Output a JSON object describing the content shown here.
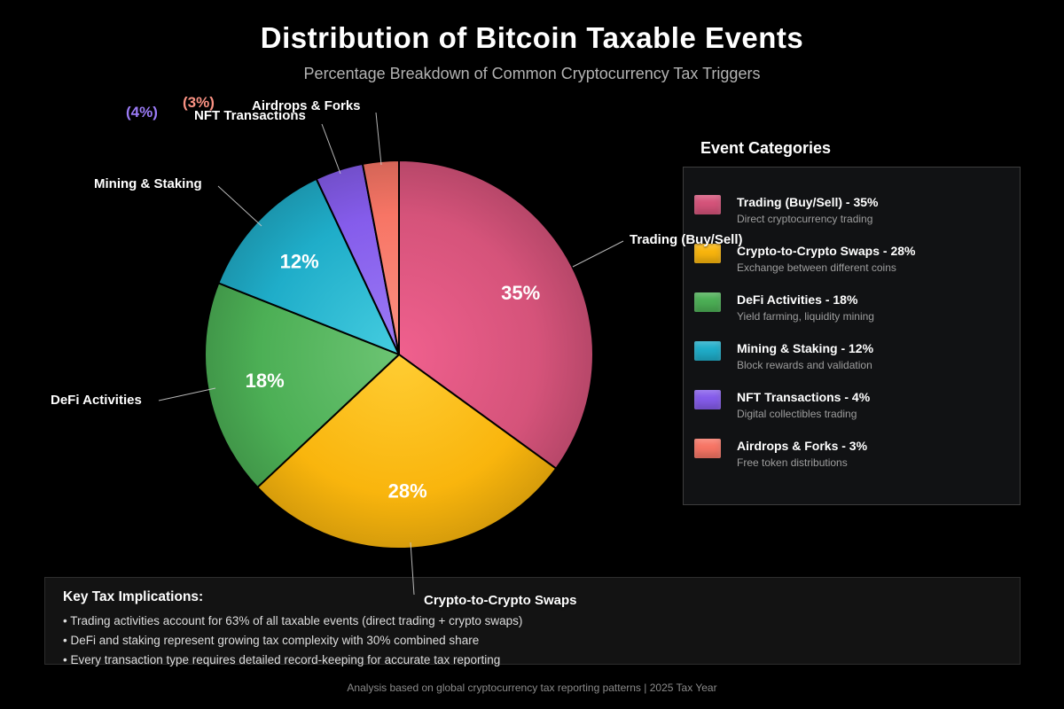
{
  "page": {
    "title": "Distribution of Bitcoin Taxable Events",
    "subtitle": "Percentage Breakdown of Common Cryptocurrency Tax Triggers",
    "footer": "Analysis based on global cryptocurrency tax reporting patterns | 2025 Tax Year"
  },
  "chart_data": {
    "type": "pie",
    "title": "Distribution of Bitcoin Taxable Events",
    "subtitle": "Percentage Breakdown of Common Cryptocurrency Tax Triggers",
    "start_angle": "12-o'clock",
    "direction": "clockwise",
    "legend_title": "Event Categories",
    "legend_position": "right",
    "slices": [
      {
        "label": "Trading (Buy/Sell)",
        "value": 35,
        "display_pct": "35%",
        "pct_placement": "inside",
        "color": "#d5537a",
        "color_light": "#f0608e",
        "description": "Direct cryptocurrency trading"
      },
      {
        "label": "Crypto-to-Crypto Swaps",
        "value": 28,
        "display_pct": "28%",
        "pct_placement": "inside",
        "color": "#f9b50d",
        "color_light": "#ffcd33",
        "description": "Exchange between different coins"
      },
      {
        "label": "DeFi Activities",
        "value": 18,
        "display_pct": "18%",
        "pct_placement": "inside",
        "color": "#4caf55",
        "color_light": "#6cc473",
        "description": "Yield farming, liquidity mining"
      },
      {
        "label": "Mining & Staking",
        "value": 12,
        "display_pct": "12%",
        "pct_placement": "inside",
        "color": "#1fadc9",
        "color_light": "#45cde0",
        "description": "Block rewards and validation"
      },
      {
        "label": "NFT Transactions",
        "value": 4,
        "display_pct": "(4%)",
        "pct_placement": "outside",
        "color": "#855ceb",
        "color_light": "#9b7bf6",
        "description": "Digital collectibles trading"
      },
      {
        "label": "Airdrops & Forks",
        "value": 3,
        "display_pct": "(3%)",
        "pct_placement": "outside",
        "color": "#f77565",
        "color_light": "#fa9283",
        "description": "Free token distributions"
      }
    ]
  },
  "legend": {
    "title": "Event Categories",
    "items": [
      {
        "title": "Trading (Buy/Sell) - 35%",
        "description": "Direct cryptocurrency trading",
        "color": "#d5537a"
      },
      {
        "title": "Crypto-to-Crypto Swaps - 28%",
        "description": "Exchange between different coins",
        "color": "#f9b50d"
      },
      {
        "title": "DeFi Activities - 18%",
        "description": "Yield farming, liquidity mining",
        "color": "#4caf55"
      },
      {
        "title": "Mining & Staking - 12%",
        "description": "Block rewards and validation",
        "color": "#1fadc9"
      },
      {
        "title": "NFT Transactions - 4%",
        "description": "Digital collectibles trading",
        "color": "#855ceb"
      },
      {
        "title": "Airdrops & Forks - 3%",
        "description": "Free token distributions",
        "color": "#f77565"
      }
    ]
  },
  "implications": {
    "title": "Key Tax Implications:",
    "bullets": [
      "• Trading activities account for 63% of all taxable events (direct trading + crypto swaps)",
      "• DeFi and staking represent growing tax complexity with 30% combined share",
      "• Every transaction type requires detailed record-keeping for accurate tax reporting"
    ]
  }
}
